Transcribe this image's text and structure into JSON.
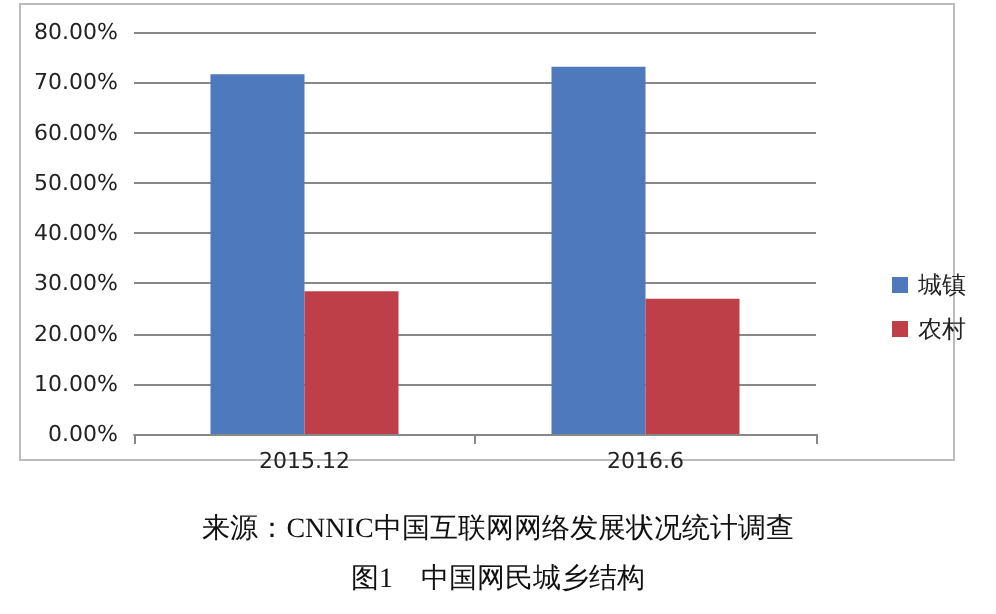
{
  "chart_data": {
    "type": "bar",
    "categories": [
      "2015.12",
      "2016.6"
    ],
    "series": [
      {
        "name": "城镇",
        "color": "#4f79bd",
        "values": [
          71.6,
          73.1
        ]
      },
      {
        "name": "农村",
        "color": "#be3f47",
        "values": [
          28.4,
          26.9
        ]
      }
    ],
    "ylim": [
      0,
      80
    ],
    "yticks": [
      {
        "value": 0,
        "label": "0.00%"
      },
      {
        "value": 10,
        "label": "10.00%"
      },
      {
        "value": 20,
        "label": "20.00%"
      },
      {
        "value": 30,
        "label": "30.00%"
      },
      {
        "value": 40,
        "label": "40.00%"
      },
      {
        "value": 50,
        "label": "50.00%"
      },
      {
        "value": 60,
        "label": "60.00%"
      },
      {
        "value": 70,
        "label": "70.00%"
      },
      {
        "value": 80,
        "label": "80.00%"
      }
    ],
    "grid": "y",
    "legend": "right",
    "annotations": [
      "来源：CNNIC中国互联网网络发展状况统计调查",
      "图1　中国网民城乡结构"
    ]
  }
}
